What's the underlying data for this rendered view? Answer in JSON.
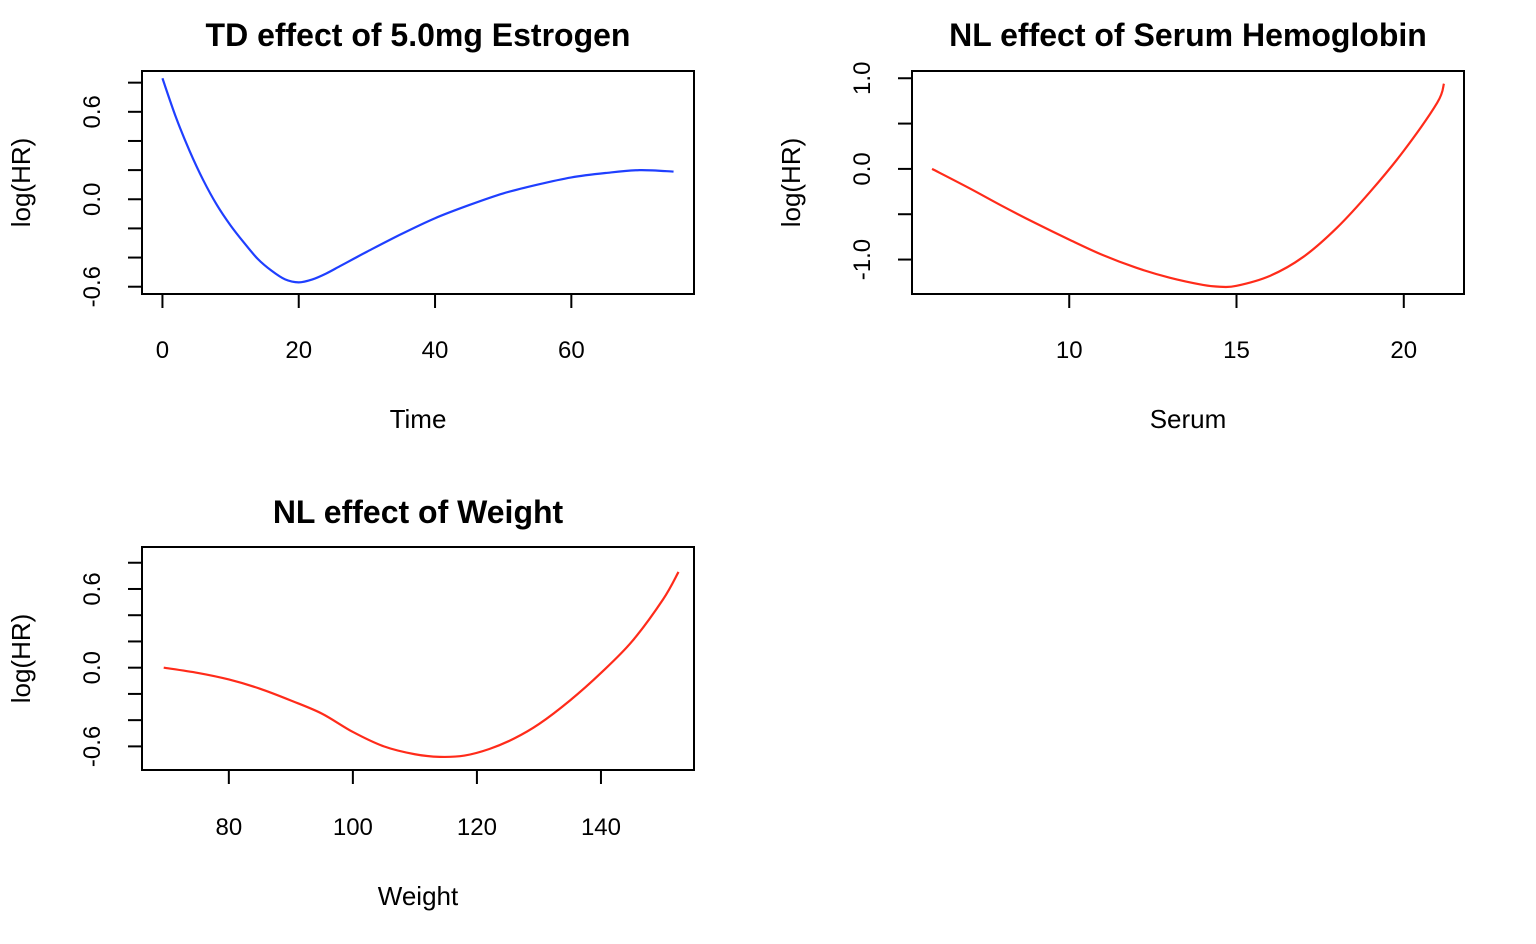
{
  "chart_data": [
    {
      "type": "line",
      "title": "TD effect of 5.0mg Estrogen",
      "xlabel": "Time",
      "ylabel": "log(HR)",
      "xlim": [
        -3,
        78
      ],
      "ylim": [
        -0.65,
        0.88
      ],
      "xticks": [
        0,
        20,
        40,
        60
      ],
      "xtick_labels": [
        "0",
        "20",
        "40",
        "60"
      ],
      "yticks": [
        -0.6,
        -0.4,
        -0.2,
        0.0,
        0.2,
        0.4,
        0.6,
        0.8
      ],
      "ytick_labels": [
        "-0.6",
        "",
        "",
        "0.0",
        "",
        "",
        "0.6",
        ""
      ],
      "series": [
        {
          "color": "#1f3fff",
          "x": [
            0,
            2,
            4,
            6,
            8,
            10,
            12,
            14,
            16,
            18,
            20,
            22,
            24,
            26,
            28,
            30,
            35,
            40,
            45,
            50,
            55,
            60,
            65,
            70,
            75
          ],
          "y": [
            0.83,
            0.56,
            0.33,
            0.13,
            -0.04,
            -0.18,
            -0.3,
            -0.41,
            -0.49,
            -0.55,
            -0.57,
            -0.55,
            -0.51,
            -0.46,
            -0.41,
            -0.36,
            -0.24,
            -0.13,
            -0.04,
            0.04,
            0.1,
            0.15,
            0.18,
            0.2,
            0.19
          ]
        }
      ]
    },
    {
      "type": "line",
      "title": "NL effect of Serum Hemoglobin",
      "xlabel": "Serum",
      "ylabel": "log(HR)",
      "xlim": [
        5.3,
        21.8
      ],
      "ylim": [
        -1.38,
        1.08
      ],
      "xticks": [
        10,
        15,
        20
      ],
      "xtick_labels": [
        "10",
        "15",
        "20"
      ],
      "yticks": [
        -1.0,
        -0.5,
        0.0,
        0.5,
        1.0
      ],
      "ytick_labels": [
        "-1.0",
        "",
        "0.0",
        "",
        "1.0"
      ],
      "series": [
        {
          "color": "#ff2b1a",
          "x": [
            5.9,
            7,
            8,
            9,
            10,
            11,
            12,
            13,
            14,
            14.5,
            15,
            16,
            17,
            18,
            19,
            20,
            21,
            21.2
          ],
          "y": [
            0.0,
            -0.21,
            -0.41,
            -0.6,
            -0.78,
            -0.95,
            -1.09,
            -1.2,
            -1.28,
            -1.3,
            -1.29,
            -1.18,
            -0.97,
            -0.65,
            -0.25,
            0.2,
            0.73,
            0.94
          ]
        }
      ]
    },
    {
      "type": "line",
      "title": "NL effect of Weight",
      "xlabel": "Weight",
      "ylabel": "log(HR)",
      "xlim": [
        66,
        155
      ],
      "ylim": [
        -0.78,
        0.92
      ],
      "xticks": [
        80,
        100,
        120,
        140
      ],
      "xtick_labels": [
        "80",
        "100",
        "120",
        "140"
      ],
      "yticks": [
        -0.6,
        -0.4,
        -0.2,
        0.0,
        0.2,
        0.4,
        0.6,
        0.8
      ],
      "ytick_labels": [
        "-0.6",
        "",
        "",
        "0.0",
        "",
        "",
        "0.6",
        ""
      ],
      "series": [
        {
          "color": "#ff2b1a",
          "x": [
            69.5,
            75,
            80,
            85,
            90,
            95,
            100,
            105,
            110,
            114,
            118,
            122,
            126,
            130,
            135,
            140,
            145,
            150,
            152.5
          ],
          "y": [
            0.0,
            -0.04,
            -0.09,
            -0.16,
            -0.25,
            -0.35,
            -0.49,
            -0.6,
            -0.66,
            -0.68,
            -0.67,
            -0.62,
            -0.54,
            -0.43,
            -0.25,
            -0.04,
            0.2,
            0.52,
            0.73
          ]
        }
      ]
    }
  ]
}
